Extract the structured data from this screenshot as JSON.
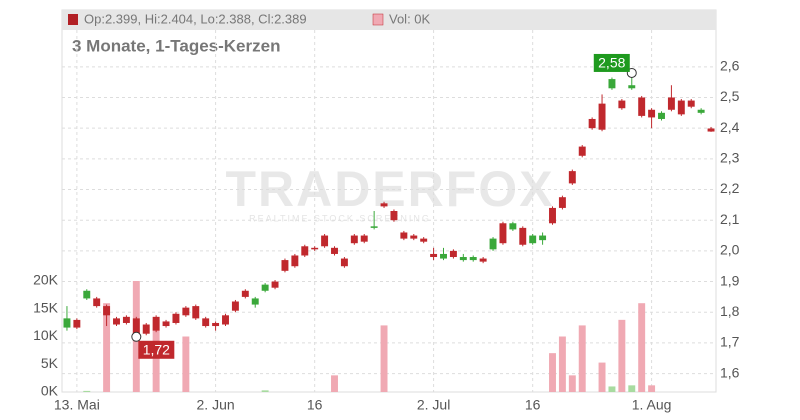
{
  "chart_data": {
    "type": "candlestick",
    "ohlc_label": "Op:2.399, Hi:2.404, Lo:2.388, Cl:2.389",
    "volume_label": "Vol: 0K",
    "subtitle": "3 Monate, 1-Tages-Kerzen",
    "watermark": "TRADERFOX",
    "watermark_sub": "REALTIME STOCK SCREENING",
    "categories": [
      null,
      "13. Mai",
      null,
      null,
      null,
      null,
      null,
      null,
      null,
      null,
      null,
      null,
      null,
      null,
      null,
      "2. Jun",
      null,
      null,
      null,
      null,
      null,
      null,
      null,
      null,
      null,
      "16",
      null,
      null,
      null,
      null,
      null,
      null,
      null,
      null,
      null,
      null,
      null,
      "2. Jul",
      null,
      null,
      null,
      null,
      null,
      null,
      null,
      null,
      null,
      "16",
      null,
      null,
      null,
      null,
      null,
      null,
      null,
      null,
      null,
      null,
      null,
      "1. Aug",
      null,
      null,
      null,
      null,
      null,
      null
    ],
    "open": [
      1.75,
      1.775,
      1.845,
      1.845,
      1.82,
      1.78,
      1.785,
      1.78,
      1.76,
      1.785,
      1.77,
      1.795,
      1.815,
      1.82,
      1.78,
      1.765,
      1.79,
      1.835,
      1.87,
      1.825,
      1.87,
      1.9,
      1.97,
      1.985,
      2.015,
      2.01,
      2.05,
      2.01,
      1.975,
      2.05,
      2.05,
      2.075,
      2.155,
      2.13,
      2.06,
      2.05,
      2.04,
      1.99,
      1.975,
      2.0,
      1.97,
      1.97,
      1.975,
      2.005,
      2.09,
      2.07,
      2.075,
      2.025,
      2.035,
      2.14,
      2.175,
      2.26,
      2.34,
      2.43,
      2.48,
      2.53,
      2.49,
      2.53,
      2.5,
      2.46,
      2.43,
      2.5,
      2.49,
      2.49,
      2.45,
      2.399
    ],
    "high": [
      1.82,
      1.78,
      1.875,
      1.85,
      1.825,
      1.785,
      1.79,
      1.785,
      1.765,
      1.79,
      1.775,
      1.8,
      1.82,
      1.825,
      1.785,
      1.77,
      1.795,
      1.84,
      1.875,
      1.85,
      1.895,
      1.905,
      1.975,
      1.99,
      2.02,
      2.015,
      2.055,
      2.015,
      1.98,
      2.055,
      2.055,
      2.13,
      2.16,
      2.135,
      2.065,
      2.055,
      2.045,
      2.01,
      2.01,
      2.005,
      1.99,
      1.985,
      1.98,
      2.045,
      2.095,
      2.095,
      2.08,
      2.055,
      2.06,
      2.145,
      2.18,
      2.265,
      2.345,
      2.435,
      2.51,
      2.565,
      2.495,
      2.58,
      2.505,
      2.465,
      2.455,
      2.54,
      2.495,
      2.495,
      2.465,
      2.404
    ],
    "low": [
      1.74,
      1.745,
      1.84,
      1.815,
      1.755,
      1.755,
      1.76,
      1.72,
      1.725,
      1.735,
      1.75,
      1.76,
      1.785,
      1.775,
      1.75,
      1.74,
      1.755,
      1.8,
      1.845,
      1.815,
      1.865,
      1.875,
      1.93,
      1.945,
      1.98,
      2.0,
      2.01,
      1.985,
      1.945,
      2.02,
      2.025,
      2.07,
      2.14,
      2.095,
      2.035,
      2.035,
      2.025,
      1.97,
      1.97,
      1.975,
      1.965,
      1.965,
      1.96,
      2.0,
      2.02,
      2.065,
      2.015,
      2.02,
      2.02,
      2.085,
      2.135,
      2.215,
      2.305,
      2.395,
      2.39,
      2.525,
      2.46,
      2.525,
      2.435,
      2.4,
      2.425,
      2.455,
      2.44,
      2.465,
      2.445,
      2.388
    ],
    "close": [
      1.78,
      1.75,
      1.87,
      1.82,
      1.79,
      1.76,
      1.765,
      1.73,
      1.73,
      1.74,
      1.755,
      1.765,
      1.79,
      1.78,
      1.755,
      1.755,
      1.76,
      1.805,
      1.85,
      1.845,
      1.89,
      1.88,
      1.935,
      1.95,
      1.985,
      2.005,
      2.015,
      1.99,
      1.95,
      2.025,
      2.03,
      2.08,
      2.145,
      2.1,
      2.04,
      2.04,
      2.03,
      1.98,
      1.99,
      1.98,
      1.98,
      1.98,
      1.965,
      2.04,
      2.025,
      2.09,
      2.02,
      2.05,
      2.05,
      2.09,
      2.14,
      2.22,
      2.31,
      2.4,
      2.395,
      2.56,
      2.465,
      2.54,
      2.44,
      2.435,
      2.45,
      2.46,
      2.445,
      2.47,
      2.46,
      2.389
    ],
    "volume": [
      0,
      0,
      200,
      0,
      16000,
      0,
      0,
      20000,
      0,
      13000,
      0,
      0,
      10000,
      0,
      0,
      0,
      0,
      0,
      0,
      0,
      300,
      0,
      0,
      0,
      0,
      0,
      0,
      3000,
      0,
      0,
      0,
      0,
      12000,
      0,
      0,
      0,
      0,
      0,
      0,
      0,
      0,
      0,
      0,
      0,
      0,
      0,
      0,
      0,
      0,
      7000,
      10000,
      3000,
      12000,
      0,
      5300,
      1000,
      13000,
      1200,
      16000,
      1200,
      0,
      0,
      0,
      0,
      0,
      0
    ],
    "up_color": "#3aa83a",
    "down_color": "#c0282d",
    "volume_up_color": "#a8dba0",
    "volume_down_color": "#f0a9b3",
    "ylim": [
      1.54,
      2.72
    ],
    "yticks": [
      {
        "value": 1.6,
        "label": "1,6"
      },
      {
        "value": 1.7,
        "label": "1,7"
      },
      {
        "value": 1.8,
        "label": "1,8"
      },
      {
        "value": 1.9,
        "label": "1,9"
      },
      {
        "value": 2.0,
        "label": "2,0"
      },
      {
        "value": 2.1,
        "label": "2,1"
      },
      {
        "value": 2.2,
        "label": "2,2"
      },
      {
        "value": 2.3,
        "label": "2,3"
      },
      {
        "value": 2.4,
        "label": "2,4"
      },
      {
        "value": 2.5,
        "label": "2,5"
      },
      {
        "value": 2.6,
        "label": "2,6"
      }
    ],
    "volume_lim": [
      0,
      20000
    ],
    "volume_ticks": [
      {
        "value": 0,
        "label": "0K"
      },
      {
        "value": 5000,
        "label": "5K"
      },
      {
        "value": 10000,
        "label": "10K"
      },
      {
        "value": 15000,
        "label": "15K"
      },
      {
        "value": 20000,
        "label": "20K"
      }
    ],
    "annotations": [
      {
        "label": "2,58",
        "value": 2.58,
        "color": "#1e9a1e",
        "kind": "high"
      },
      {
        "label": "1,72",
        "value": 1.72,
        "color": "#c0282d",
        "kind": "low"
      }
    ],
    "grid": true
  }
}
